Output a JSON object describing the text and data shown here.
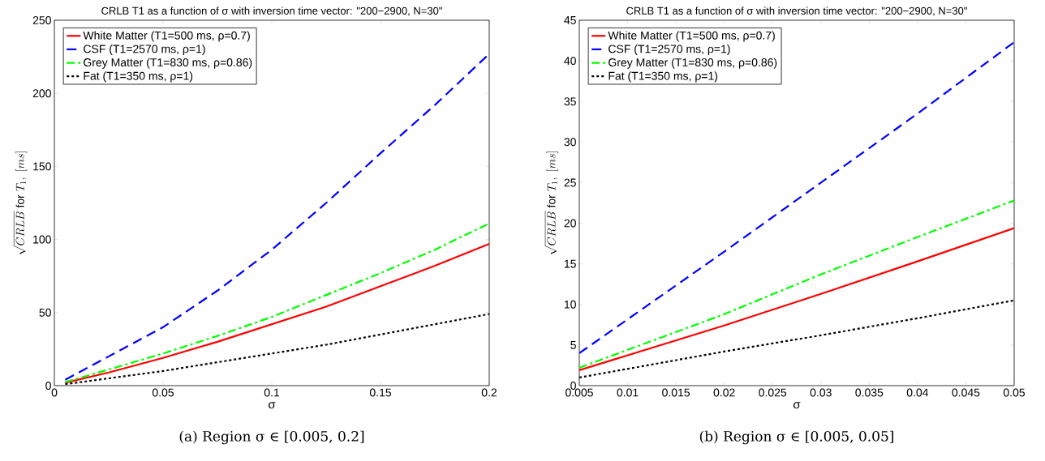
{
  "chart_data": [
    {
      "type": "line",
      "title": "CRLB T1 as a function of σ with inversion time vector: \"200−2900, N=30\"",
      "xlabel": "σ",
      "ylabel": "\\sqrt{CRLB}\\ \\mathrm{for}\\ T_1,\\ [ms]",
      "legend": "top left",
      "grid": false,
      "xlim": [
        0,
        0.2
      ],
      "xticks": [
        0,
        0.05,
        0.1,
        0.15,
        0.2
      ],
      "ylim": [
        0,
        250
      ],
      "yticks": [
        0,
        50,
        100,
        150,
        200,
        250
      ],
      "x": [
        0.005,
        0.025,
        0.05,
        0.075,
        0.1,
        0.125,
        0.15,
        0.175,
        0.2
      ],
      "series": [
        {
          "name": "White Matter (T1=500 ms, ρ=0.7)",
          "color": "#ff0000",
          "line_style": "solid",
          "values": [
            2,
            9,
            19,
            30,
            42,
            54,
            68,
            82,
            97
          ]
        },
        {
          "name": "CSF (T1=2570 ms, ρ=1)",
          "color": "#0000ff",
          "line_style": "dashed",
          "values": [
            4,
            20,
            40,
            65,
            93,
            125,
            159,
            192,
            227
          ]
        },
        {
          "name": "Grey Matter (T1=830 ms, ρ=0.86)",
          "color": "#00ff00",
          "line_style": "dashdot",
          "values": [
            2.5,
            11,
            22,
            34,
            47,
            62,
            77,
            93,
            111
          ]
        },
        {
          "name": "Fat (T1=350 ms, ρ=1)",
          "color": "#000000",
          "line_style": "dotted",
          "values": [
            1,
            5,
            10,
            16,
            22,
            28,
            35,
            42,
            49
          ]
        }
      ],
      "annotations": [
        "(a) Region σ ∈ [0.005, 0.2]"
      ]
    },
    {
      "type": "line",
      "title": "CRLB T1 as a function of σ with inversion time vector: \"200−2900, N=30\"",
      "xlabel": "σ",
      "ylabel": "\\sqrt{CRLB}\\ \\mathrm{for}\\ T_1,\\ [ms]",
      "legend": "top left",
      "grid": false,
      "xlim": [
        0.005,
        0.05
      ],
      "xticks": [
        0.005,
        0.01,
        0.015,
        0.02,
        0.025,
        0.03,
        0.035,
        0.04,
        0.045,
        0.05
      ],
      "ylim": [
        0,
        45
      ],
      "yticks": [
        0,
        5,
        10,
        15,
        20,
        25,
        30,
        35,
        40,
        45
      ],
      "x": [
        0.005,
        0.02,
        0.03,
        0.04,
        0.05
      ],
      "series": [
        {
          "name": "White Matter (T1=500 ms, ρ=0.7)",
          "color": "#ff0000",
          "line_style": "solid",
          "values": [
            1.9,
            7.4,
            11.3,
            15.3,
            19.4
          ]
        },
        {
          "name": "CSF (T1=2570 ms, ρ=1)",
          "color": "#0000ff",
          "line_style": "dashed",
          "values": [
            4,
            16.5,
            25,
            33.5,
            42.3
          ]
        },
        {
          "name": "Grey Matter (T1=830 ms, ρ=0.86)",
          "color": "#00ff00",
          "line_style": "dashdot",
          "values": [
            2.2,
            8.8,
            13.7,
            18.3,
            22.8
          ]
        },
        {
          "name": "Fat (T1=350 ms, ρ=1)",
          "color": "#000000",
          "line_style": "dotted",
          "values": [
            1,
            4.2,
            6.2,
            8.3,
            10.5
          ]
        }
      ],
      "annotations": [
        "(b) Region σ ∈ [0.005, 0.05]"
      ]
    }
  ]
}
